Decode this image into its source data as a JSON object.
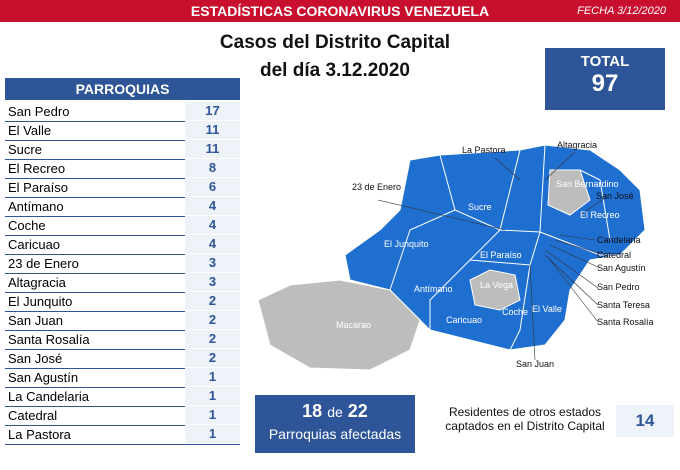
{
  "header": {
    "title": "ESTADÍSTICAS CORONAVIRUS VENEZUELA",
    "date": "FECHA 3/12/2020"
  },
  "heading": {
    "line1": "Casos del Distrito Capital",
    "line2": "del día 3.12.2020"
  },
  "total": {
    "label": "TOTAL",
    "value": 97
  },
  "table": {
    "header": "PARROQUIAS",
    "rows": [
      [
        "San Pedro",
        17
      ],
      [
        "El Valle",
        11
      ],
      [
        "Sucre",
        11
      ],
      [
        "El Recreo",
        8
      ],
      [
        "El Paraíso",
        6
      ],
      [
        "Antímano",
        4
      ],
      [
        "Coche",
        4
      ],
      [
        "Caricuao",
        4
      ],
      [
        "23 de Enero",
        3
      ],
      [
        "Altagracia",
        3
      ],
      [
        "El Junquito",
        2
      ],
      [
        "San Juan",
        2
      ],
      [
        "Santa Rosalía",
        2
      ],
      [
        "San José",
        2
      ],
      [
        "San Agustín",
        1
      ],
      [
        "La Candelaria",
        1
      ],
      [
        "Catedral",
        1
      ],
      [
        "La Pastora",
        1
      ]
    ]
  },
  "map": {
    "labels": [
      "La Pastora",
      "Altagracia",
      "23 de Enero",
      "San Bernardino",
      "San José",
      "Sucre",
      "El Recreo",
      "El Junquito",
      "Candelaria",
      "Catedral",
      "San Agustín",
      "El Paraíso",
      "La Vega",
      "San Pedro",
      "Antímano",
      "Santa Teresa",
      "Macarao",
      "Caricuao",
      "Coche",
      "El Valle",
      "Santa Rosalía",
      "San Juan"
    ]
  },
  "affected": {
    "count": 18,
    "connector": "de",
    "total": 22,
    "label": "Parroquias afectadas"
  },
  "residents": {
    "label": "Residentes de otros estados captados en el Distrito Capital",
    "value": 14
  }
}
